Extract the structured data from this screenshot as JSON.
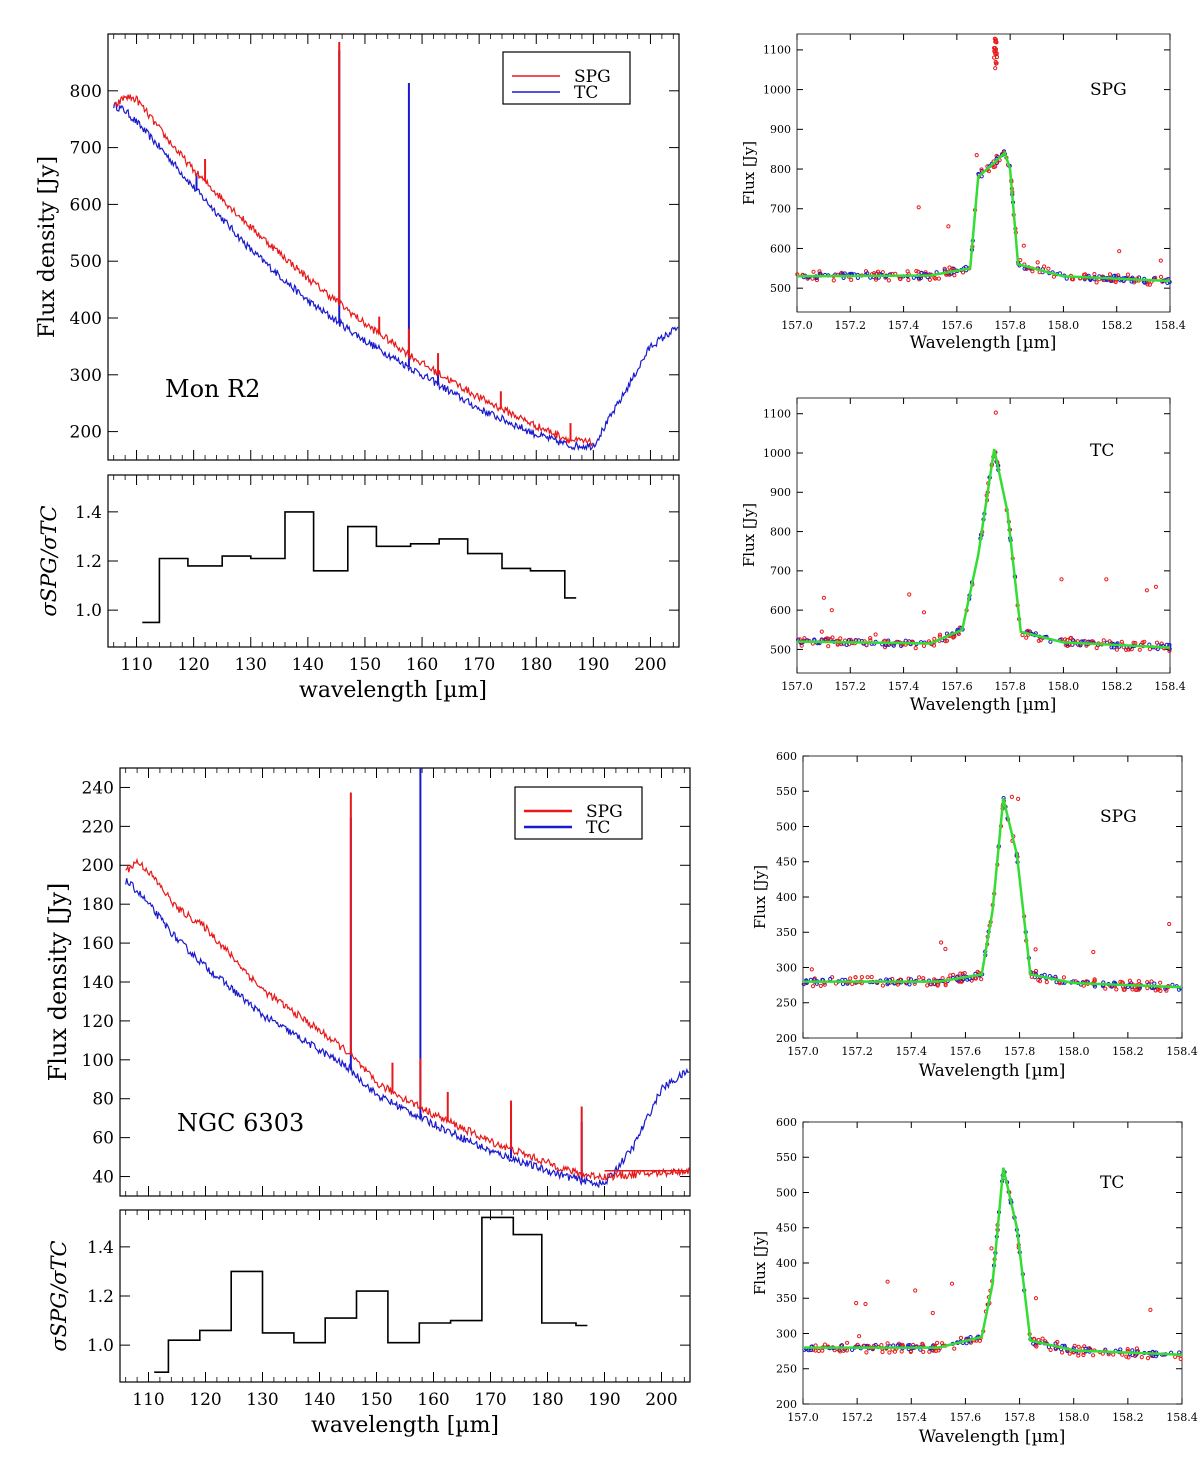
{
  "colors": {
    "spg": "#e8191b",
    "tc": "#1a1acc",
    "fit": "#33dd33",
    "axis": "#000000"
  },
  "panels": {
    "mon_r2": {
      "label": "Mon R2",
      "ylabel": "Flux density [Jy]",
      "xlabel": "wavelength [µm]"
    },
    "ngc_6303": {
      "label": "NGC 6303",
      "ylabel": "Flux density [Jy]",
      "xlabel": "wavelength [µm]"
    },
    "ratio_ylabel": "σSPG/σTC",
    "zoom_ylabel": "Flux [Jy]",
    "zoom_xlabel": "Wavelength [µm]"
  },
  "legend": {
    "spg": "SPG",
    "tc": "TC"
  },
  "chart_data": [
    {
      "type": "line",
      "id": "monr2_spectrum",
      "xlim": [
        105,
        205
      ],
      "ylim": [
        150,
        900
      ],
      "xticks": [],
      "yticks": [
        200,
        300,
        400,
        500,
        600,
        700,
        800
      ],
      "series": [
        {
          "name": "SPG",
          "x": [
            106,
            108,
            110,
            115,
            120,
            130,
            140,
            150,
            160,
            170,
            180,
            186,
            190
          ],
          "y": [
            770,
            790,
            785,
            720,
            660,
            560,
            470,
            390,
            320,
            260,
            210,
            185,
            180
          ],
          "lines": [
            {
              "x": 122,
              "h": 40
            },
            {
              "x": 145.5,
              "h": 460
            },
            {
              "x": 152.5,
              "h": 30
            },
            {
              "x": 157.7,
              "h": 45
            },
            {
              "x": 162.8,
              "h": 35
            },
            {
              "x": 173.8,
              "h": 30
            },
            {
              "x": 186,
              "h": 30
            }
          ]
        },
        {
          "name": "TC",
          "x": [
            106,
            108,
            110,
            115,
            120,
            130,
            140,
            150,
            160,
            170,
            180,
            186,
            190,
            195,
            200,
            205
          ],
          "y": [
            775,
            765,
            745,
            690,
            630,
            520,
            430,
            360,
            300,
            240,
            195,
            175,
            175,
            260,
            350,
            385
          ],
          "lines": [
            {
              "x": 120.5,
              "h": 30
            },
            {
              "x": 145.5,
              "h": 480
            },
            {
              "x": 157.7,
              "h": 500
            },
            {
              "x": 162.8,
              "h": 25
            }
          ]
        }
      ]
    },
    {
      "type": "line",
      "id": "monr2_ratio",
      "step": true,
      "xlim": [
        105,
        205
      ],
      "ylim": [
        0.85,
        1.55
      ],
      "xticks": [
        110,
        120,
        130,
        140,
        150,
        160,
        170,
        180,
        190,
        200
      ],
      "yticks": [
        1.0,
        1.2,
        1.4
      ],
      "edges": [
        111,
        114,
        119,
        125,
        130,
        136,
        141,
        147,
        152,
        158,
        163,
        168,
        174,
        179,
        185,
        187
      ],
      "values": [
        0.95,
        1.21,
        1.18,
        1.22,
        1.21,
        1.4,
        1.16,
        1.34,
        1.26,
        1.27,
        1.29,
        1.23,
        1.17,
        1.16,
        1.05
      ]
    },
    {
      "type": "line",
      "id": "ngc6303_spectrum",
      "xlim": [
        105,
        205
      ],
      "ylim": [
        30,
        250
      ],
      "xticks": [],
      "yticks": [
        40,
        60,
        80,
        100,
        120,
        140,
        160,
        180,
        200,
        220,
        240
      ],
      "series": [
        {
          "name": "SPG",
          "x": [
            106,
            108,
            110,
            115,
            120,
            130,
            140,
            145,
            150,
            160,
            170,
            180,
            186,
            190,
            205
          ],
          "y": [
            197,
            202,
            197,
            178,
            168,
            136,
            115,
            104,
            88,
            72,
            58,
            47,
            41,
            40,
            43
          ],
          "lines": [
            {
              "x": 145.5,
              "h": 135
            },
            {
              "x": 152.8,
              "h": 15
            },
            {
              "x": 157.7,
              "h": 25
            },
            {
              "x": 162.5,
              "h": 15
            },
            {
              "x": 173.6,
              "h": 25
            },
            {
              "x": 186,
              "h": 35
            }
          ]
        },
        {
          "name": "TC",
          "x": [
            106,
            108,
            110,
            115,
            120,
            130,
            140,
            145,
            150,
            160,
            170,
            180,
            186,
            190,
            195,
            200,
            205
          ],
          "y": [
            192,
            187,
            180,
            162,
            148,
            123,
            105,
            96,
            82,
            67,
            53,
            43,
            38,
            36,
            55,
            85,
            95
          ],
          "lines": [
            {
              "x": 145.5,
              "h": 130
            },
            {
              "x": 157.7,
              "h": 190
            },
            {
              "x": 173.6,
              "h": 25
            },
            {
              "x": 186,
              "h": 30
            }
          ]
        }
      ]
    },
    {
      "type": "line",
      "id": "ngc6303_ratio",
      "step": true,
      "xlim": [
        105,
        205
      ],
      "ylim": [
        0.85,
        1.55
      ],
      "xticks": [
        110,
        120,
        130,
        140,
        150,
        160,
        170,
        180,
        190,
        200
      ],
      "yticks": [
        1.0,
        1.2,
        1.4
      ],
      "edges": [
        111,
        113.5,
        119,
        124.5,
        130,
        135.5,
        141,
        146.5,
        152,
        157.5,
        163,
        168.5,
        174,
        179,
        185,
        187
      ],
      "values": [
        0.89,
        1.02,
        1.06,
        1.3,
        1.05,
        1.01,
        1.11,
        1.22,
        1.01,
        1.09,
        1.1,
        1.52,
        1.45,
        1.09,
        1.08
      ]
    },
    {
      "type": "scatter",
      "id": "zoom_monr2_spg",
      "label": "SPG",
      "xlim": [
        157.0,
        158.4
      ],
      "ylim": [
        440,
        1140
      ],
      "xticks": [
        157.0,
        157.2,
        157.4,
        157.6,
        157.8,
        158.0,
        158.2,
        158.4
      ],
      "yticks": [
        500,
        600,
        700,
        800,
        900,
        1000,
        1100
      ],
      "fit": {
        "x": [
          157.0,
          157.5,
          157.65,
          157.68,
          157.78,
          157.8,
          157.83,
          158.0,
          158.4
        ],
        "y": [
          530,
          532,
          550,
          780,
          840,
          800,
          560,
          530,
          518
        ]
      }
    },
    {
      "type": "scatter",
      "id": "zoom_monr2_tc",
      "label": "TC",
      "xlim": [
        157.0,
        158.4
      ],
      "ylim": [
        440,
        1140
      ],
      "xticks": [
        157.0,
        157.2,
        157.4,
        157.6,
        157.8,
        158.0,
        158.2,
        158.4
      ],
      "yticks": [
        500,
        600,
        700,
        800,
        900,
        1000,
        1100
      ],
      "fit": {
        "x": [
          157.0,
          157.5,
          157.62,
          157.68,
          157.74,
          157.79,
          157.84,
          158.0,
          158.4
        ],
        "y": [
          520,
          515,
          550,
          740,
          1010,
          850,
          545,
          518,
          505
        ]
      }
    },
    {
      "type": "scatter",
      "id": "zoom_ngc6303_spg",
      "label": "SPG",
      "xlim": [
        157.0,
        158.4
      ],
      "ylim": [
        200,
        600
      ],
      "xticks": [
        157.0,
        157.2,
        157.4,
        157.6,
        157.8,
        158.0,
        158.2,
        158.4
      ],
      "yticks": [
        200,
        250,
        300,
        350,
        400,
        450,
        500,
        550,
        600
      ],
      "fit": {
        "x": [
          157.0,
          157.5,
          157.66,
          157.7,
          157.74,
          157.79,
          157.84,
          158.0,
          158.4
        ],
        "y": [
          280,
          280,
          290,
          380,
          540,
          460,
          290,
          278,
          272
        ]
      }
    },
    {
      "type": "scatter",
      "id": "zoom_ngc6303_tc",
      "label": "TC",
      "xlim": [
        157.0,
        158.4
      ],
      "ylim": [
        200,
        600
      ],
      "xticks": [
        157.0,
        157.2,
        157.4,
        157.6,
        157.8,
        158.0,
        158.2,
        158.4
      ],
      "yticks": [
        200,
        250,
        300,
        350,
        400,
        450,
        500,
        550,
        600
      ],
      "fit": {
        "x": [
          157.0,
          157.5,
          157.66,
          157.7,
          157.74,
          157.79,
          157.84,
          158.0,
          158.4
        ],
        "y": [
          280,
          280,
          295,
          370,
          535,
          450,
          290,
          276,
          270
        ]
      }
    }
  ]
}
